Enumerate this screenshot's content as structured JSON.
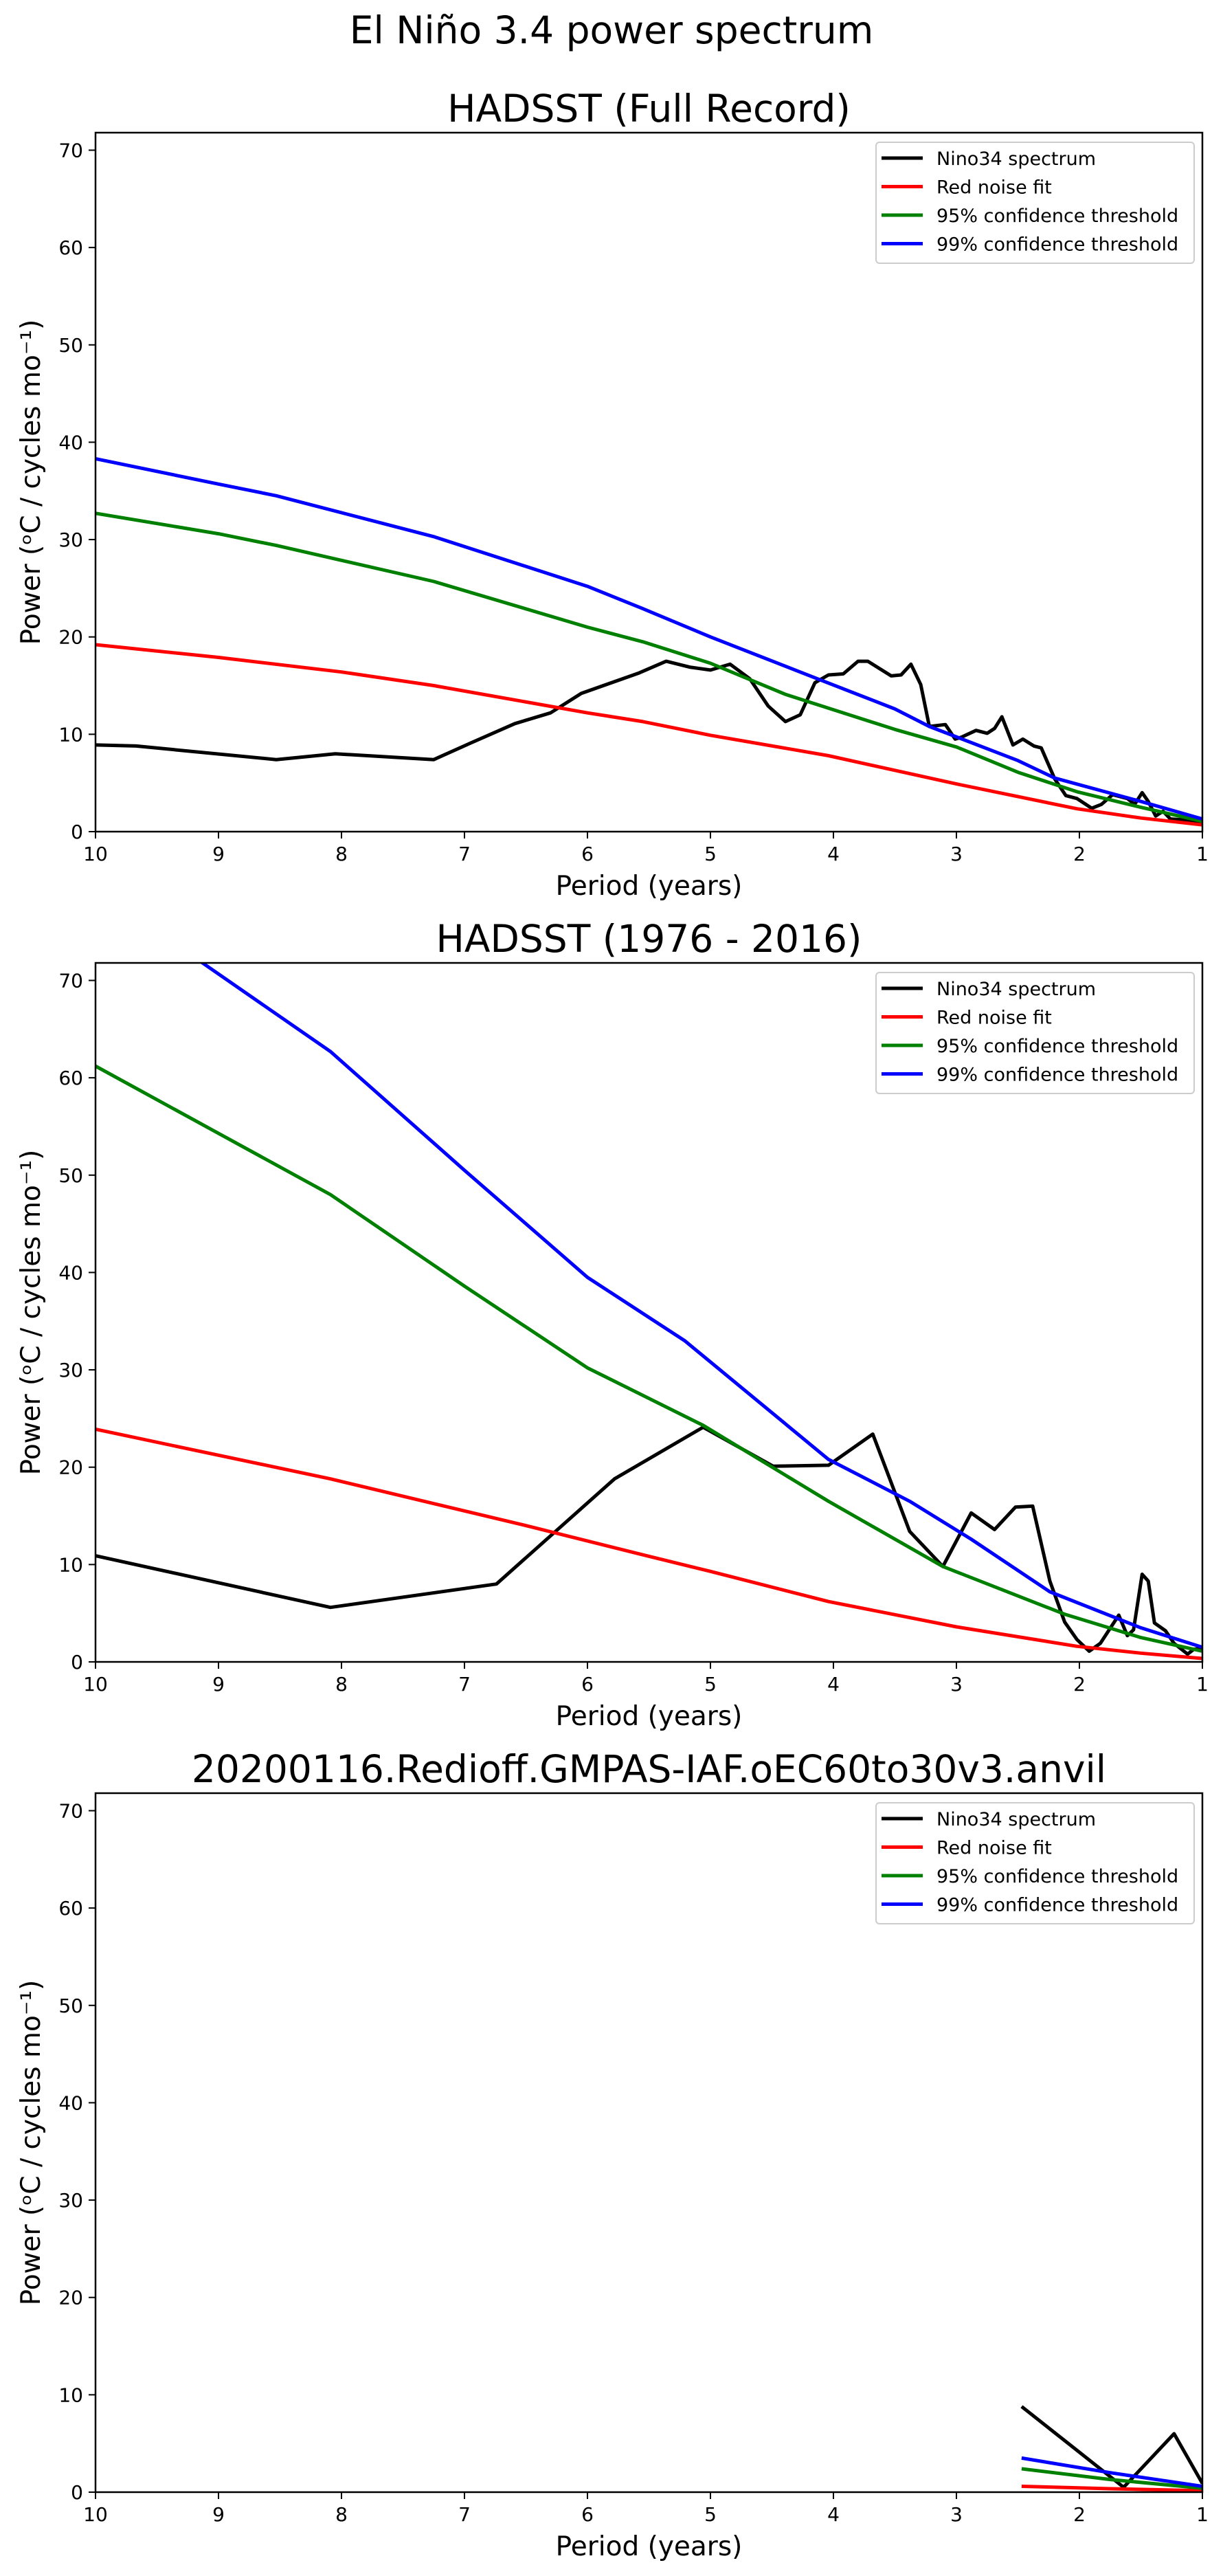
{
  "figure": {
    "title": "El Niño 3.4 power spectrum"
  },
  "legend_labels": [
    "Nino34 spectrum",
    "Red noise fit",
    "95% confidence threshold",
    "99% confidence threshold"
  ],
  "series_colors": {
    "Nino34 spectrum": "#000000",
    "Red noise fit": "#ff0000",
    "95% confidence threshold": "#008000",
    "99% confidence threshold": "#0000ff"
  },
  "chart_data": [
    {
      "type": "line",
      "title": "HADSST (Full Record)",
      "xlabel": "Period (years)",
      "ylabel": "Power (ᵒC / cycles mo⁻¹)",
      "xlim": [
        10,
        1
      ],
      "ylim": [
        0,
        71.8
      ],
      "xticks": [
        10,
        9,
        8,
        7,
        6,
        5,
        4,
        3,
        2,
        1
      ],
      "yticks": [
        0,
        10,
        20,
        30,
        40,
        50,
        60,
        70
      ],
      "grid": false,
      "legend_position": "top-right",
      "series": [
        {
          "name": "Nino34 spectrum",
          "x": [
            10.0,
            9.67,
            8.53,
            8.05,
            7.25,
            6.95,
            6.59,
            6.3,
            6.05,
            5.58,
            5.36,
            5.17,
            5.0,
            4.84,
            4.68,
            4.53,
            4.39,
            4.27,
            4.15,
            4.04,
            3.92,
            3.8,
            3.72,
            3.53,
            3.45,
            3.37,
            3.29,
            3.22,
            3.09,
            3.01,
            2.96,
            2.84,
            2.75,
            2.69,
            2.63,
            2.54,
            2.46,
            2.37,
            2.31,
            2.2,
            2.11,
            2.02,
            1.9,
            1.82,
            1.73,
            1.61,
            1.55,
            1.49,
            1.44,
            1.38,
            1.32,
            1.26,
            1.14,
            1.0
          ],
          "y": [
            8.9,
            8.8,
            7.4,
            8.0,
            7.4,
            9.1,
            11.1,
            12.2,
            14.2,
            16.3,
            17.5,
            16.9,
            16.6,
            17.2,
            15.7,
            12.9,
            11.3,
            12.0,
            15.3,
            16.1,
            16.2,
            17.5,
            17.5,
            16.0,
            16.1,
            17.2,
            15.1,
            10.8,
            11.0,
            9.5,
            9.7,
            10.4,
            10.1,
            10.6,
            11.8,
            8.9,
            9.5,
            8.8,
            8.6,
            5.4,
            3.7,
            3.4,
            2.4,
            2.8,
            3.8,
            3.4,
            2.8,
            4.0,
            3.1,
            1.6,
            2.1,
            1.3,
            1.2,
            1.0
          ]
        },
        {
          "name": "Red noise fit",
          "x": [
            10,
            9,
            8,
            7.25,
            6,
            5.55,
            5,
            4.04,
            3.0,
            2.02,
            1.5,
            1.0
          ],
          "y": [
            19.2,
            17.9,
            16.4,
            15.0,
            12.2,
            11.3,
            9.9,
            7.8,
            4.9,
            2.35,
            1.4,
            0.7
          ]
        },
        {
          "name": "95% confidence threshold",
          "x": [
            10,
            9,
            8.53,
            7.25,
            6,
            5.55,
            5,
            4.39,
            3.5,
            3.0,
            2.5,
            2.02,
            1.5,
            1.0
          ],
          "y": [
            32.7,
            30.6,
            29.4,
            25.7,
            21.0,
            19.5,
            17.3,
            14.1,
            10.5,
            8.7,
            6.1,
            4.1,
            2.5,
            1.06
          ]
        },
        {
          "name": "99% confidence threshold",
          "x": [
            10,
            9,
            8.53,
            7.25,
            6,
            5.55,
            5,
            4.15,
            3.5,
            3.22,
            2.5,
            2.2,
            1.5,
            1.0
          ],
          "y": [
            38.3,
            35.7,
            34.5,
            30.3,
            25.2,
            22.9,
            20.0,
            15.8,
            12.6,
            10.8,
            7.3,
            5.5,
            3.1,
            1.3
          ]
        }
      ]
    },
    {
      "type": "line",
      "title": "HADSST (1976 - 2016)",
      "xlabel": "Period (years)",
      "ylabel": "Power (ᵒC / cycles mo⁻¹)",
      "xlim": [
        10,
        1
      ],
      "ylim": [
        0,
        71.8
      ],
      "xticks": [
        10,
        9,
        8,
        7,
        6,
        5,
        4,
        3,
        2,
        1
      ],
      "yticks": [
        0,
        10,
        20,
        30,
        40,
        50,
        60,
        70
      ],
      "grid": false,
      "legend_position": "top-right",
      "series": [
        {
          "name": "Nino34 spectrum",
          "x": [
            10.0,
            8.09,
            6.74,
            5.78,
            5.06,
            4.49,
            4.04,
            3.68,
            3.38,
            3.11,
            2.88,
            2.69,
            2.52,
            2.38,
            2.24,
            2.12,
            2.02,
            1.92,
            1.83,
            1.68,
            1.61,
            1.56,
            1.49,
            1.44,
            1.39,
            1.3,
            1.23,
            1.12,
            1.07,
            1.0
          ],
          "y": [
            10.9,
            5.6,
            8.0,
            18.8,
            24.1,
            20.1,
            20.2,
            23.4,
            13.4,
            9.8,
            15.3,
            13.6,
            15.9,
            16.0,
            8.3,
            4.1,
            2.3,
            1.1,
            1.9,
            4.8,
            2.7,
            3.3,
            9.0,
            8.3,
            4.0,
            3.2,
            1.9,
            0.8,
            1.3,
            1.4
          ]
        },
        {
          "name": "Red noise fit",
          "x": [
            10,
            8.09,
            6.5,
            5.55,
            5,
            4.04,
            3.0,
            2.02,
            1.5,
            1.0
          ],
          "y": [
            23.9,
            18.8,
            14.0,
            11.0,
            9.3,
            6.2,
            3.6,
            1.6,
            0.9,
            0.35
          ]
        },
        {
          "name": "95% confidence threshold",
          "x": [
            10,
            8.09,
            7,
            6,
            5.06,
            4.04,
            3.11,
            2.12,
            1.5,
            1.0
          ],
          "y": [
            61.2,
            48.0,
            38.6,
            30.2,
            24.3,
            16.5,
            9.8,
            4.9,
            2.5,
            1.1
          ]
        },
        {
          "name": "99% confidence threshold",
          "x": [
            10,
            9.13,
            8.09,
            7,
            6,
            5.21,
            4.04,
            3.38,
            2.88,
            2.24,
            1.5,
            1.0
          ],
          "y": [
            79.4,
            71.8,
            62.7,
            50.5,
            39.5,
            33.0,
            20.8,
            16.5,
            12.6,
            7.2,
            3.5,
            1.5
          ]
        }
      ]
    },
    {
      "type": "line",
      "title": "20200116.Redioff.GMPAS-IAF.oEC60to30v3.anvil",
      "xlabel": "Period (years)",
      "ylabel": "Power (ᵒC / cycles mo⁻¹)",
      "xlim": [
        10,
        1
      ],
      "ylim": [
        0,
        71.8
      ],
      "xticks": [
        10,
        9,
        8,
        7,
        6,
        5,
        4,
        3,
        2,
        1
      ],
      "yticks": [
        0,
        10,
        20,
        30,
        40,
        50,
        60,
        70
      ],
      "grid": false,
      "legend_position": "top-right",
      "series": [
        {
          "name": "Nino34 spectrum",
          "x": [
            2.47,
            1.64,
            1.23,
            1.0
          ],
          "y": [
            8.8,
            0.5,
            6.0,
            0.9
          ]
        },
        {
          "name": "Red noise fit",
          "x": [
            2.47,
            1.75,
            1.0
          ],
          "y": [
            0.6,
            0.35,
            0.15
          ]
        },
        {
          "name": "95% confidence threshold",
          "x": [
            2.47,
            1.75,
            1.0
          ],
          "y": [
            2.4,
            1.3,
            0.4
          ]
        },
        {
          "name": "99% confidence threshold",
          "x": [
            2.47,
            1.75,
            1.0
          ],
          "y": [
            3.5,
            2.0,
            0.6
          ]
        }
      ]
    }
  ]
}
